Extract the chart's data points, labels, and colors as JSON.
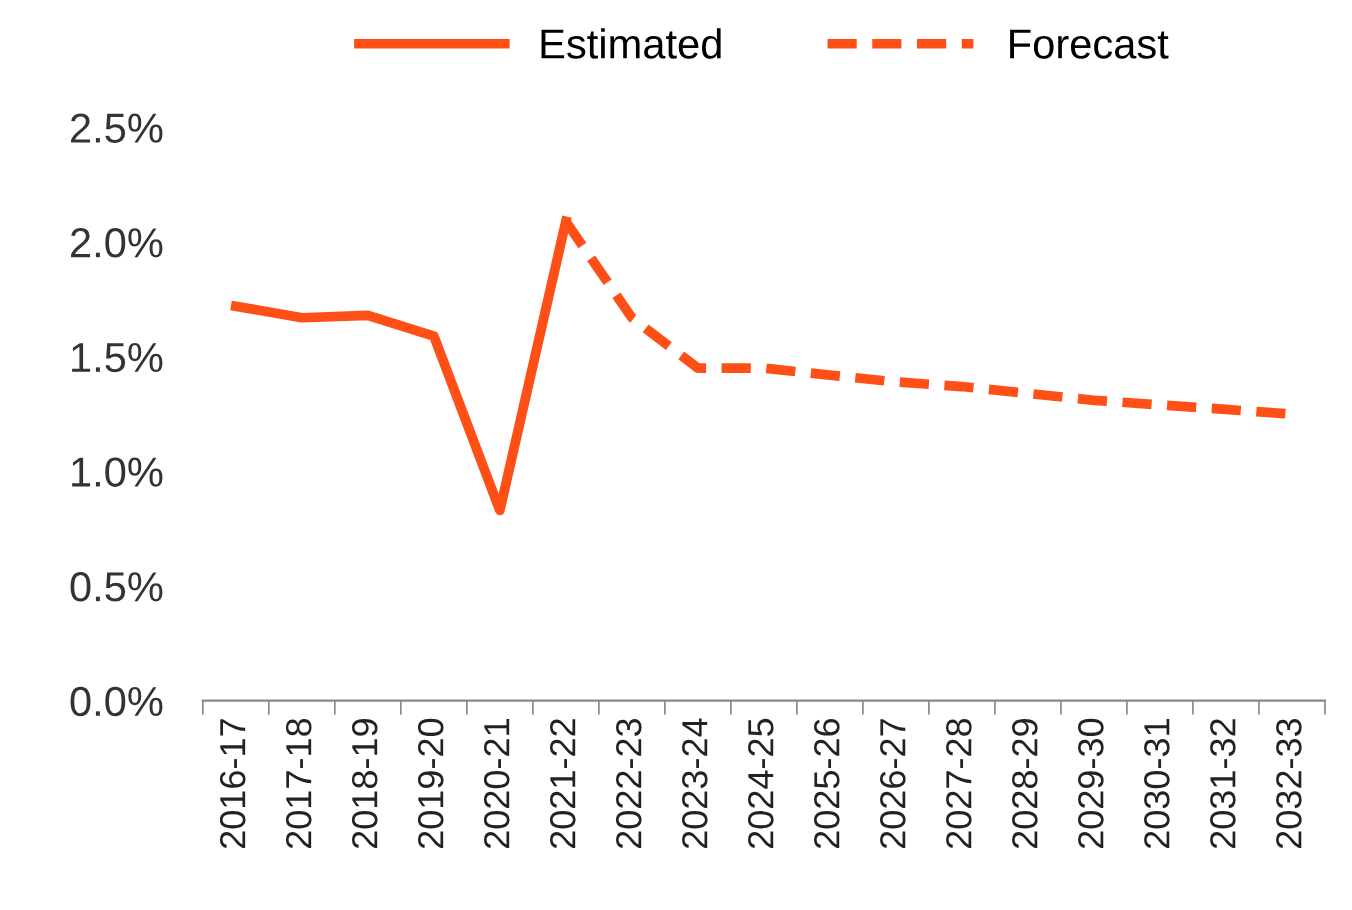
{
  "chart_data": {
    "type": "line",
    "categories": [
      "2016-17",
      "2017-18",
      "2018-19",
      "2019-20",
      "2020-21",
      "2021-22",
      "2022-23",
      "2023-24",
      "2024-25",
      "2025-26",
      "2026-27",
      "2027-28",
      "2028-29",
      "2029-30",
      "2030-31",
      "2031-32",
      "2032-33"
    ],
    "series": [
      {
        "name": "Estimated",
        "color": "#fe5016",
        "line_style": "solid",
        "values": [
          1.72,
          1.67,
          1.68,
          1.59,
          0.83,
          2.09,
          null,
          null,
          null,
          null,
          null,
          null,
          null,
          null,
          null,
          null,
          null
        ]
      },
      {
        "name": "Forecast",
        "color": "#fe5016",
        "line_style": "dashed",
        "values": [
          null,
          null,
          null,
          null,
          null,
          2.09,
          1.67,
          1.45,
          1.45,
          1.42,
          1.39,
          1.37,
          1.34,
          1.31,
          1.29,
          1.27,
          1.25
        ]
      }
    ],
    "ylim": [
      0,
      2.5
    ],
    "yticks": [
      {
        "value": 0,
        "label": "0.0%"
      },
      {
        "value": 0.5,
        "label": "0.5%"
      },
      {
        "value": 1.0,
        "label": "1.0%"
      },
      {
        "value": 1.5,
        "label": "1.5%"
      },
      {
        "value": 2.0,
        "label": "2.0%"
      },
      {
        "value": 2.5,
        "label": "2.5%"
      }
    ],
    "grid": false,
    "legend": "top",
    "marker": "none"
  }
}
